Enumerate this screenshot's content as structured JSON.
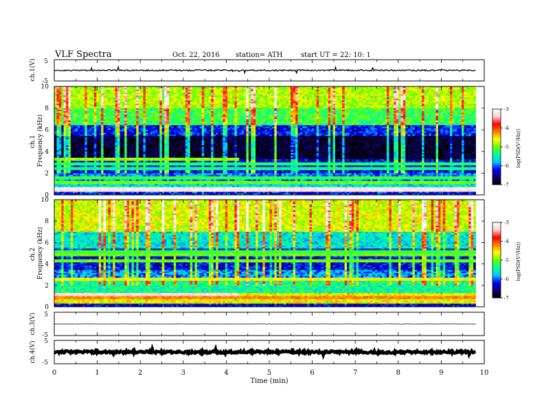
{
  "header": {
    "title": "VLF  Spectra",
    "date": "Oct. 22, 2016",
    "station": "station= ATH",
    "start_ut": "start  UT  =    22: 10: 1"
  },
  "colors": {
    "background": "#ffffff",
    "axis": "#000000",
    "trace": "#000000",
    "colormap": [
      "#000000",
      "#10006a",
      "#0000ff",
      "#00c8ff",
      "#00ff99",
      "#66ff00",
      "#ffff00",
      "#ff8000",
      "#ff0000",
      "#ffd0d0",
      "#ffffff"
    ]
  },
  "chart_data": [
    {
      "type": "line",
      "name": "ch1_waveform",
      "ylabel": "ch.1(V)",
      "ylim": [
        -5,
        5
      ],
      "yticks": [
        "5",
        "-5"
      ],
      "xlim": [
        0,
        10
      ],
      "x_end": 9.8,
      "baseline": 0,
      "noise_amplitude": 0.3
    },
    {
      "type": "heatmap",
      "name": "ch1_spectrogram",
      "ylabel": "ch.1\nFrequency  (kHz)",
      "ylim": [
        0,
        10
      ],
      "yticks": [
        "0",
        "2",
        "4",
        "6",
        "8",
        "10"
      ],
      "xlim": [
        0,
        10
      ],
      "x_end": 9.8,
      "colorbar": {
        "label": "log(PSD(V²/Hz))",
        "range": [
          -7,
          -3
        ],
        "ticks": [
          "-7",
          "-6",
          "-5",
          "-4",
          "-3"
        ]
      },
      "bands": [
        {
          "f": [
            0.0,
            0.3
          ],
          "v": -6.2
        },
        {
          "f": [
            0.3,
            0.7
          ],
          "v": -3.6
        },
        {
          "f": [
            0.7,
            1.3
          ],
          "v": -5.6
        },
        {
          "f": [
            1.3,
            2.0
          ],
          "v": -5.9
        },
        {
          "f": [
            2.0,
            3.3
          ],
          "v": -6.3
        },
        {
          "f": [
            3.3,
            5.5
          ],
          "v": -6.85
        },
        {
          "f": [
            5.5,
            6.5
          ],
          "v": -6.2
        },
        {
          "f": [
            6.5,
            8.0
          ],
          "v": -5.2
        },
        {
          "f": [
            8.0,
            10.0
          ],
          "v": -4.8
        }
      ],
      "lines": [
        {
          "f": 0.5,
          "v": -3.2
        },
        {
          "f": 1.1,
          "v": -5.0
        },
        {
          "f": 1.6,
          "v": -5.2
        },
        {
          "f": 2.4,
          "v": -5.4
        },
        {
          "f": 2.9,
          "v": -5.3
        },
        {
          "f": 3.35,
          "v": -4.9,
          "x_until": 4.3
        }
      ]
    },
    {
      "type": "heatmap",
      "name": "ch2_spectrogram",
      "ylabel": "ch.2\nFrequency  (kHz)",
      "ylim": [
        0,
        10
      ],
      "yticks": [
        "0",
        "2",
        "4",
        "6",
        "8",
        "10"
      ],
      "xlim": [
        0,
        10
      ],
      "x_end": 9.8,
      "colorbar": {
        "label": "log(PSD(V²/Hz))",
        "range": [
          -7,
          -3
        ],
        "ticks": [
          "-7",
          "-6",
          "-5",
          "-4",
          "-3"
        ]
      },
      "bands": [
        {
          "f": [
            0.0,
            0.3
          ],
          "v": -6.3
        },
        {
          "f": [
            0.3,
            1.3
          ],
          "v": -4.6
        },
        {
          "f": [
            1.3,
            2.6
          ],
          "v": -5.4
        },
        {
          "f": [
            2.6,
            3.5
          ],
          "v": -5.9
        },
        {
          "f": [
            3.5,
            5.5
          ],
          "v": -6.3
        },
        {
          "f": [
            5.5,
            7.0
          ],
          "v": -5.6
        },
        {
          "f": [
            7.0,
            10.0
          ],
          "v": -4.7
        }
      ],
      "lines": [
        {
          "f": 0.8,
          "v": -4.2
        },
        {
          "f": 1.2,
          "v": -3.3,
          "x_until": 4.3
        },
        {
          "f": 2.6,
          "v": -4.6
        },
        {
          "f": 4.3,
          "v": -5.0
        },
        {
          "f": 4.8,
          "v": -5.0
        },
        {
          "f": 5.2,
          "v": -5.2
        }
      ]
    },
    {
      "type": "line",
      "name": "ch3_waveform",
      "ylabel": "ch.3(V)",
      "ylim": [
        -5,
        5
      ],
      "yticks": [
        "5",
        "-5"
      ],
      "xlim": [
        0,
        10
      ],
      "x_end": 9.8,
      "baseline": 0,
      "noise_amplitude": 0.05
    },
    {
      "type": "line",
      "name": "ch4_waveform",
      "ylabel": "ch.4(V)",
      "ylim": [
        -5,
        5
      ],
      "yticks": [
        "5",
        "-5"
      ],
      "xlim": [
        0,
        10
      ],
      "x_end": 9.8,
      "baseline": 0,
      "noise_amplitude": 0.5
    }
  ],
  "x_axis": {
    "label": "Time  (min)",
    "ticks": [
      "0",
      "1",
      "2",
      "3",
      "4",
      "5",
      "6",
      "7",
      "8",
      "9",
      "10"
    ]
  }
}
